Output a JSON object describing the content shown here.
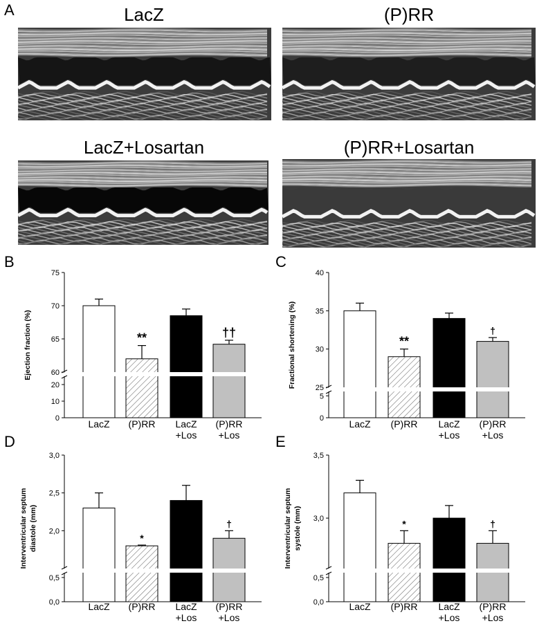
{
  "panel_a": {
    "letter": "A",
    "echo_panels": [
      {
        "title": "LacZ",
        "lumen": "#151515"
      },
      {
        "title": "(P)RR",
        "lumen": "#1e1e1e"
      },
      {
        "title": "LacZ+Losartan",
        "lumen": "#070707"
      },
      {
        "title": "(P)RR+Losartan",
        "lumen": "#3a3a3a"
      }
    ]
  },
  "colors": {
    "lacz": "#ffffff",
    "prr": "hatched",
    "lacz_los": "#000000",
    "prr_los": "#c0c0c0"
  },
  "chart_data": [
    {
      "panel": "B",
      "type": "bar",
      "ylabel": "Ejection fraction (%)",
      "categories": [
        "LacZ",
        "(P)RR",
        "LacZ\n+Los",
        "(P)RR\n+Los"
      ],
      "category_lines": [
        [
          "LacZ"
        ],
        [
          "(P)RR"
        ],
        [
          "LacZ",
          "+Los"
        ],
        [
          "(P)RR",
          "+Los"
        ]
      ],
      "values": [
        70,
        62,
        68.5,
        64.2
      ],
      "errors": [
        1,
        2,
        1,
        0.6
      ],
      "significance": [
        "",
        "**",
        "",
        "††"
      ],
      "axis_break": true,
      "lower_segment": {
        "range": [
          0,
          25
        ],
        "ticks": [
          0,
          10,
          20
        ],
        "tick_labels": [
          "0",
          "10",
          "20"
        ]
      },
      "upper_segment": {
        "range": [
          60,
          75
        ],
        "ticks": [
          60,
          65,
          70,
          75
        ],
        "tick_labels": [
          "60",
          "65",
          "70",
          "75"
        ]
      }
    },
    {
      "panel": "C",
      "type": "bar",
      "ylabel": "Fractional shortening (%)",
      "categories": [
        "LacZ",
        "(P)RR",
        "LacZ\n+Los",
        "(P)RR\n+Los"
      ],
      "category_lines": [
        [
          "LacZ"
        ],
        [
          "(P)RR"
        ],
        [
          "LacZ",
          "+Los"
        ],
        [
          "(P)RR",
          "+Los"
        ]
      ],
      "values": [
        35,
        29,
        34,
        31
      ],
      "errors": [
        1,
        1,
        0.7,
        0.5
      ],
      "significance": [
        "",
        "**",
        "",
        "†"
      ],
      "axis_break": true,
      "lower_segment": {
        "range": [
          0,
          6
        ],
        "ticks": [
          0,
          5
        ],
        "tick_labels": [
          "0",
          "5"
        ]
      },
      "upper_segment": {
        "range": [
          25,
          40
        ],
        "ticks": [
          25,
          30,
          35,
          40
        ],
        "tick_labels": [
          "25",
          "30",
          "35",
          "40"
        ]
      }
    },
    {
      "panel": "D",
      "type": "bar",
      "ylabel": "Interventricular septum diastole (mm)",
      "ylabel_lines": [
        "Interventricular septum",
        "diastole (mm)"
      ],
      "categories": [
        "LacZ",
        "(P)RR",
        "LacZ\n+Los",
        "(P)RR\n+Los"
      ],
      "category_lines": [
        [
          "LacZ"
        ],
        [
          "(P)RR"
        ],
        [
          "LacZ",
          "+Los"
        ],
        [
          "(P)RR",
          "+Los"
        ]
      ],
      "values": [
        2.3,
        1.8,
        2.4,
        1.9
      ],
      "errors": [
        0.2,
        0.01,
        0.2,
        0.1
      ],
      "significance": [
        "",
        "*",
        "",
        "†"
      ],
      "axis_break": true,
      "lower_segment": {
        "range": [
          0,
          0.6
        ],
        "ticks": [
          0,
          0.5
        ],
        "tick_labels": [
          "0,0",
          "0,5"
        ]
      },
      "upper_segment": {
        "range": [
          1.5,
          3.0
        ],
        "ticks": [
          2.0,
          2.5,
          3.0
        ],
        "tick_labels": [
          "2,0",
          "2,5",
          "3,0"
        ]
      }
    },
    {
      "panel": "E",
      "type": "bar",
      "ylabel": "Interventricular septum systole (mm)",
      "ylabel_lines": [
        "Interventricular septum",
        "systole (mm)"
      ],
      "categories": [
        "LacZ",
        "(P)RR",
        "LacZ\n+Los",
        "(P)RR\n+Los"
      ],
      "category_lines": [
        [
          "LacZ"
        ],
        [
          "(P)RR"
        ],
        [
          "LacZ",
          "+Los"
        ],
        [
          "(P)RR",
          "+Los"
        ]
      ],
      "values": [
        3.2,
        2.8,
        3.0,
        2.8
      ],
      "errors": [
        0.1,
        0.1,
        0.1,
        0.1
      ],
      "significance": [
        "",
        "*",
        "",
        "†"
      ],
      "axis_break": true,
      "lower_segment": {
        "range": [
          0,
          0.6
        ],
        "ticks": [
          0,
          0.5
        ],
        "tick_labels": [
          "0,0",
          "0,5"
        ]
      },
      "upper_segment": {
        "range": [
          2.6,
          3.5
        ],
        "ticks": [
          3.0,
          3.5
        ],
        "tick_labels": [
          "3,0",
          "3,5"
        ]
      }
    }
  ]
}
